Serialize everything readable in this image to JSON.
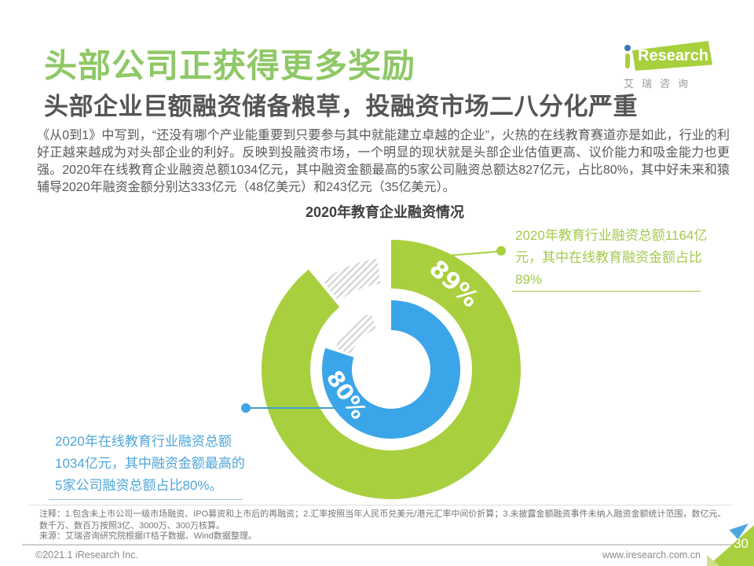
{
  "page": {
    "title": "头部公司正获得更多奖励",
    "subtitle": "头部企业巨额融资储备粮草，投融资市场二八分化严重",
    "body": "《从0到1》中写到，“还没有哪个产业能重要到只要参与其中就能建立卓越的企业”，火热的在线教育赛道亦是如此，行业的利好正越来越成为对头部企业的利好。反映到投融资市场，一个明显的现状就是头部企业估值更高、议价能力和吸金能力也更强。2020年在线教育企业融资总额1034亿元，其中融资金额最高的5家公司融资总额达827亿元，占比80%，其中好未来和猿辅导2020年融资金额分别达333亿元（48亿美元）和243亿元（35亿美元）。"
  },
  "logo": {
    "brand_i": "i",
    "brand": "Research",
    "cn": "艾瑞咨询"
  },
  "chart_data": {
    "type": "pie",
    "variant": "concentric-double-donut",
    "title": "2020年教育企业融资情况",
    "legend_position": "none",
    "grid": false,
    "series": [
      {
        "name": "在线教育融资金额占教育行业融资总额比例",
        "value": 89,
        "label": "89%",
        "ring": "outer",
        "color": "#A8CF3D"
      },
      {
        "name": "头部5家公司融资总额占在线教育融资总额比例",
        "value": 80,
        "label": "80%",
        "ring": "inner",
        "color": "#3AA5E9"
      }
    ],
    "gap_style": "diagonal-gray-hatch",
    "annotations": [
      {
        "text": "2020年教育行业融资总额1164亿元，其中在线教育融资金额占比89%",
        "color": "#A4C94F",
        "position": "top-right",
        "refers_to": "outer-ring"
      },
      {
        "text": "2020年在线教育行业融资总额1034亿元，其中融资金额最高的5家公司融资总额占比80%。",
        "color": "#4FA6DB",
        "position": "bottom-left",
        "refers_to": "inner-ring"
      }
    ]
  },
  "footnote": {
    "notes": "注释：1.包含未上市公司一级市场融资、IPO募资和上市后的再融资；2.汇率按照当年人民币兑美元/港元汇率中间价折算；3.未披露金额融资事件未纳入融资金额统计范围，数亿元、数千万、数百万按照3亿、3000万、300万核算。",
    "source": "来源：艾瑞咨询研究院根据IT桔子数据、Wind数据整理。"
  },
  "footer": {
    "copyright": "©2021.1 iResearch Inc.",
    "website": "www.iresearch.com.cn",
    "page_number": "30"
  },
  "colors": {
    "title_green": "#8FC866",
    "ring_green": "#A8CF3D",
    "ring_blue": "#3AA5E9",
    "annotation_green": "#A4C94F",
    "annotation_blue": "#4FA6DB",
    "text_dark": "#595959",
    "hatch_gray": "#D4D4D4"
  }
}
